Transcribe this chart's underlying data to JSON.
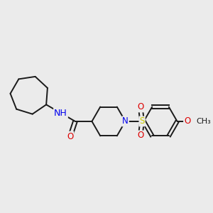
{
  "background_color": "#ebebeb",
  "bond_color": "#1a1a1a",
  "bond_width": 1.4,
  "atom_colors": {
    "N": "#0000ee",
    "O": "#dd0000",
    "S": "#cccc00",
    "H": "#557777",
    "C": "#1a1a1a"
  },
  "font_size": 8.5,
  "figsize": [
    3.0,
    3.0
  ],
  "dpi": 100
}
